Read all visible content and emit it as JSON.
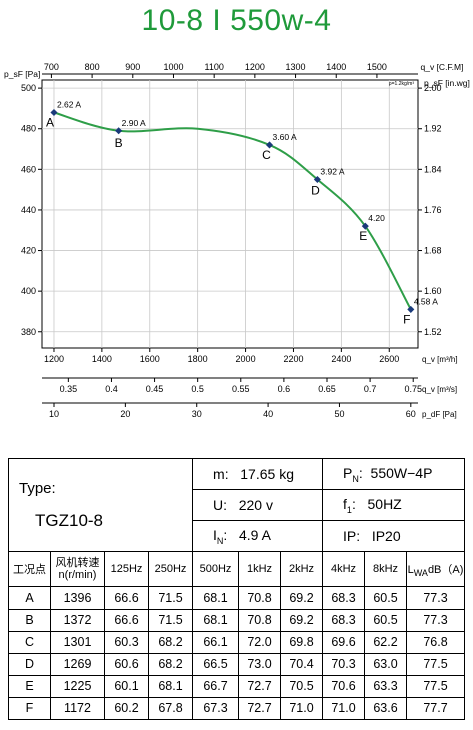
{
  "title": "10-8 I 550w-4",
  "chart_data": {
    "type": "line",
    "axes": {
      "top_label": "q_v [C.F.M]",
      "top_ticks": [
        700,
        800,
        900,
        1000,
        1100,
        1200,
        1300,
        1400,
        1500
      ],
      "density_note": "ρ=1.2kg/m³",
      "left_label": "p_sF [Pa]",
      "left_ticks": [
        380,
        400,
        420,
        440,
        460,
        480,
        500
      ],
      "right_label": "p_sF [in.wg]",
      "right_ticks": [
        "1.52",
        "1.60",
        "1.68",
        "1.76",
        "1.84",
        "1.92",
        "2.00"
      ],
      "bottom1_label": "q_v [m³/h]",
      "bottom1_ticks": [
        1200,
        1400,
        1600,
        1800,
        2000,
        2200,
        2400,
        2600
      ],
      "bottom2_label": "q_v [m³/s]",
      "bottom2_ticks": [
        "0.35",
        "0.4",
        "0.45",
        "0.5",
        "0.55",
        "0.6",
        "0.65",
        "0.7",
        "0.75"
      ],
      "bottom3_label": "p_dF [Pa]",
      "bottom3_ticks": [
        10,
        20,
        30,
        40,
        50,
        60
      ],
      "xlim_m3h": [
        1150,
        2720
      ],
      "ylim_pa": [
        372,
        504
      ]
    },
    "series": [
      {
        "points": [
          {
            "x": 1200,
            "y": 488,
            "point": "A",
            "current": "2.62 A"
          },
          {
            "x": 1470,
            "y": 479,
            "point": "B",
            "current": "2.90 A"
          },
          {
            "x": 2100,
            "y": 472,
            "point": "C",
            "current": "3.60 A"
          },
          {
            "x": 2300,
            "y": 455,
            "point": "D",
            "current": "3.92 A"
          },
          {
            "x": 2500,
            "y": 432,
            "point": "E",
            "current": "4.20"
          },
          {
            "x": 2690,
            "y": 391,
            "point": "F",
            "current": "4.58 A"
          }
        ]
      }
    ],
    "curve_color": "#2e9e48"
  },
  "specs": {
    "type_label": "Type:",
    "type_value": "TGZ10-8",
    "m_label": "m:",
    "m_value": "17.65  kg",
    "pn_label": "P",
    "pn_sub": "N",
    "pn_value": "550W−4P",
    "u_label": "U:",
    "u_value": "220  v",
    "f_label": "f",
    "f_sub": "1",
    "f_value": "50HZ",
    "i_label": "I",
    "i_sub": "N",
    "i_value": "4.9  A",
    "ip_label": "IP:",
    "ip_value": "IP20"
  },
  "noise_table": {
    "headers": [
      "工况点",
      "风机转速",
      "n(r/min)",
      "125Hz",
      "250Hz",
      "500Hz",
      "1kHz",
      "2kHz",
      "4kHz",
      "8kHz",
      "L",
      "WA",
      "dB（A)"
    ],
    "rows": [
      [
        "A",
        "1396",
        "66.6",
        "71.5",
        "68.1",
        "70.8",
        "69.2",
        "68.3",
        "60.5",
        "77.3"
      ],
      [
        "B",
        "1372",
        "66.6",
        "71.5",
        "68.1",
        "70.8",
        "69.2",
        "68.3",
        "60.5",
        "77.3"
      ],
      [
        "C",
        "1301",
        "60.3",
        "68.2",
        "66.1",
        "72.0",
        "69.8",
        "69.6",
        "62.2",
        "76.8"
      ],
      [
        "D",
        "1269",
        "60.6",
        "68.2",
        "66.5",
        "73.0",
        "70.4",
        "70.3",
        "63.0",
        "77.5"
      ],
      [
        "E",
        "1225",
        "60.1",
        "68.1",
        "66.7",
        "72.7",
        "70.5",
        "70.6",
        "63.3",
        "77.5"
      ],
      [
        "F",
        "1172",
        "60.2",
        "67.8",
        "67.3",
        "72.7",
        "71.0",
        "71.0",
        "63.6",
        "77.7"
      ]
    ]
  }
}
